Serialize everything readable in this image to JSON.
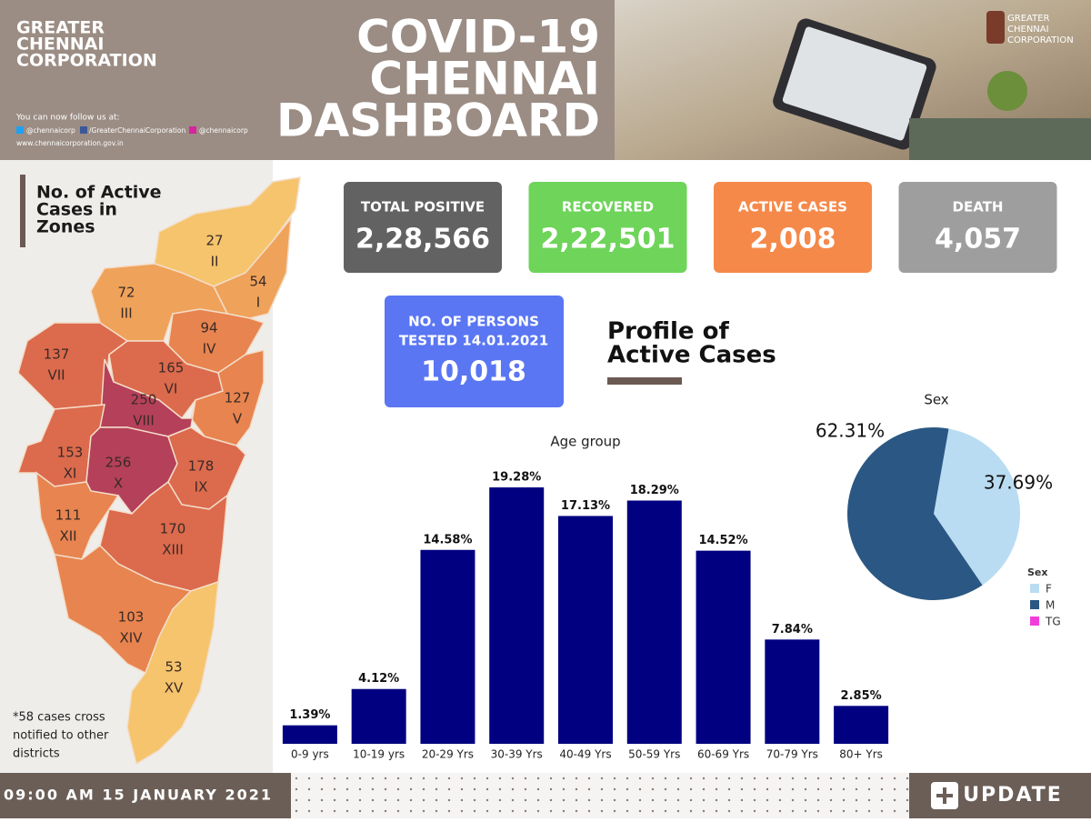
{
  "header": {
    "org_lines": [
      "GREATER",
      "CHENNAI",
      "CORPORATION"
    ],
    "follow": "You can now follow us at:",
    "social": [
      "@chennaicorp",
      "/GreaterChennaiCorporation",
      "@chennaicorp"
    ],
    "website": "www.chennaicorporation.gov.in",
    "title_lines": [
      "COVID-19",
      "CHENNAI",
      "DASHBOARD"
    ],
    "logo_lines": [
      "GREATER",
      "CHENNAI",
      "CORPORATION"
    ]
  },
  "map": {
    "title_lines": [
      "No. of Active",
      "Cases in",
      "Zones"
    ],
    "zones": [
      {
        "value": 27,
        "label": "II"
      },
      {
        "value": 54,
        "label": "I"
      },
      {
        "value": 72,
        "label": "III"
      },
      {
        "value": 94,
        "label": "IV"
      },
      {
        "value": 137,
        "label": "VII"
      },
      {
        "value": 165,
        "label": "VI"
      },
      {
        "value": 127,
        "label": "V"
      },
      {
        "value": 250,
        "label": "VIII"
      },
      {
        "value": 153,
        "label": "XI"
      },
      {
        "value": 256,
        "label": "X"
      },
      {
        "value": 178,
        "label": "IX"
      },
      {
        "value": 111,
        "label": "XII"
      },
      {
        "value": 170,
        "label": "XIII"
      },
      {
        "value": 103,
        "label": "XIV"
      },
      {
        "value": 53,
        "label": "XV"
      }
    ],
    "note_lines": [
      "*58 cases cross",
      "notified to other",
      "districts"
    ]
  },
  "stats": [
    {
      "label": "TOTAL POSITIVE",
      "value": "2,28,566"
    },
    {
      "label": "RECOVERED",
      "value": "2,22,501"
    },
    {
      "label": "ACTIVE CASES",
      "value": "2,008"
    },
    {
      "label": "DEATH",
      "value": "4,057"
    }
  ],
  "tested": {
    "label_lines": [
      "NO. OF PERSONS",
      "TESTED 14.01.2021"
    ],
    "value": "10,018"
  },
  "profile_title_lines": [
    "Profile of",
    "Active Cases"
  ],
  "chart_data": [
    {
      "type": "bar",
      "title": "Age group",
      "categories": [
        "0-9 yrs",
        "10-19 yrs",
        "20-29 Yrs",
        "30-39 Yrs",
        "40-49 Yrs",
        "50-59 Yrs",
        "60-69 Yrs",
        "70-79 Yrs",
        "80+ Yrs"
      ],
      "values": [
        1.39,
        4.12,
        14.58,
        19.28,
        17.13,
        18.29,
        14.52,
        7.84,
        2.85
      ],
      "value_labels": [
        "1.39%",
        "4.12%",
        "14.58%",
        "19.28%",
        "17.13%",
        "18.29%",
        "14.52%",
        "7.84%",
        "2.85%"
      ],
      "color": "#000080",
      "ylim": [
        0,
        21.4
      ]
    },
    {
      "type": "pie",
      "title": "Sex",
      "legend_title": "Sex",
      "categories": [
        "F",
        "M",
        "TG"
      ],
      "values": [
        37.69,
        62.31,
        0
      ],
      "value_labels": [
        "37.69%",
        "62.31%",
        null
      ],
      "colors": [
        "#b9dcf2",
        "#2a5783",
        "#f23ed9"
      ]
    }
  ],
  "footer": {
    "datetime": "09:00 AM 15 JANUARY 2021",
    "update": "UPDATE"
  }
}
